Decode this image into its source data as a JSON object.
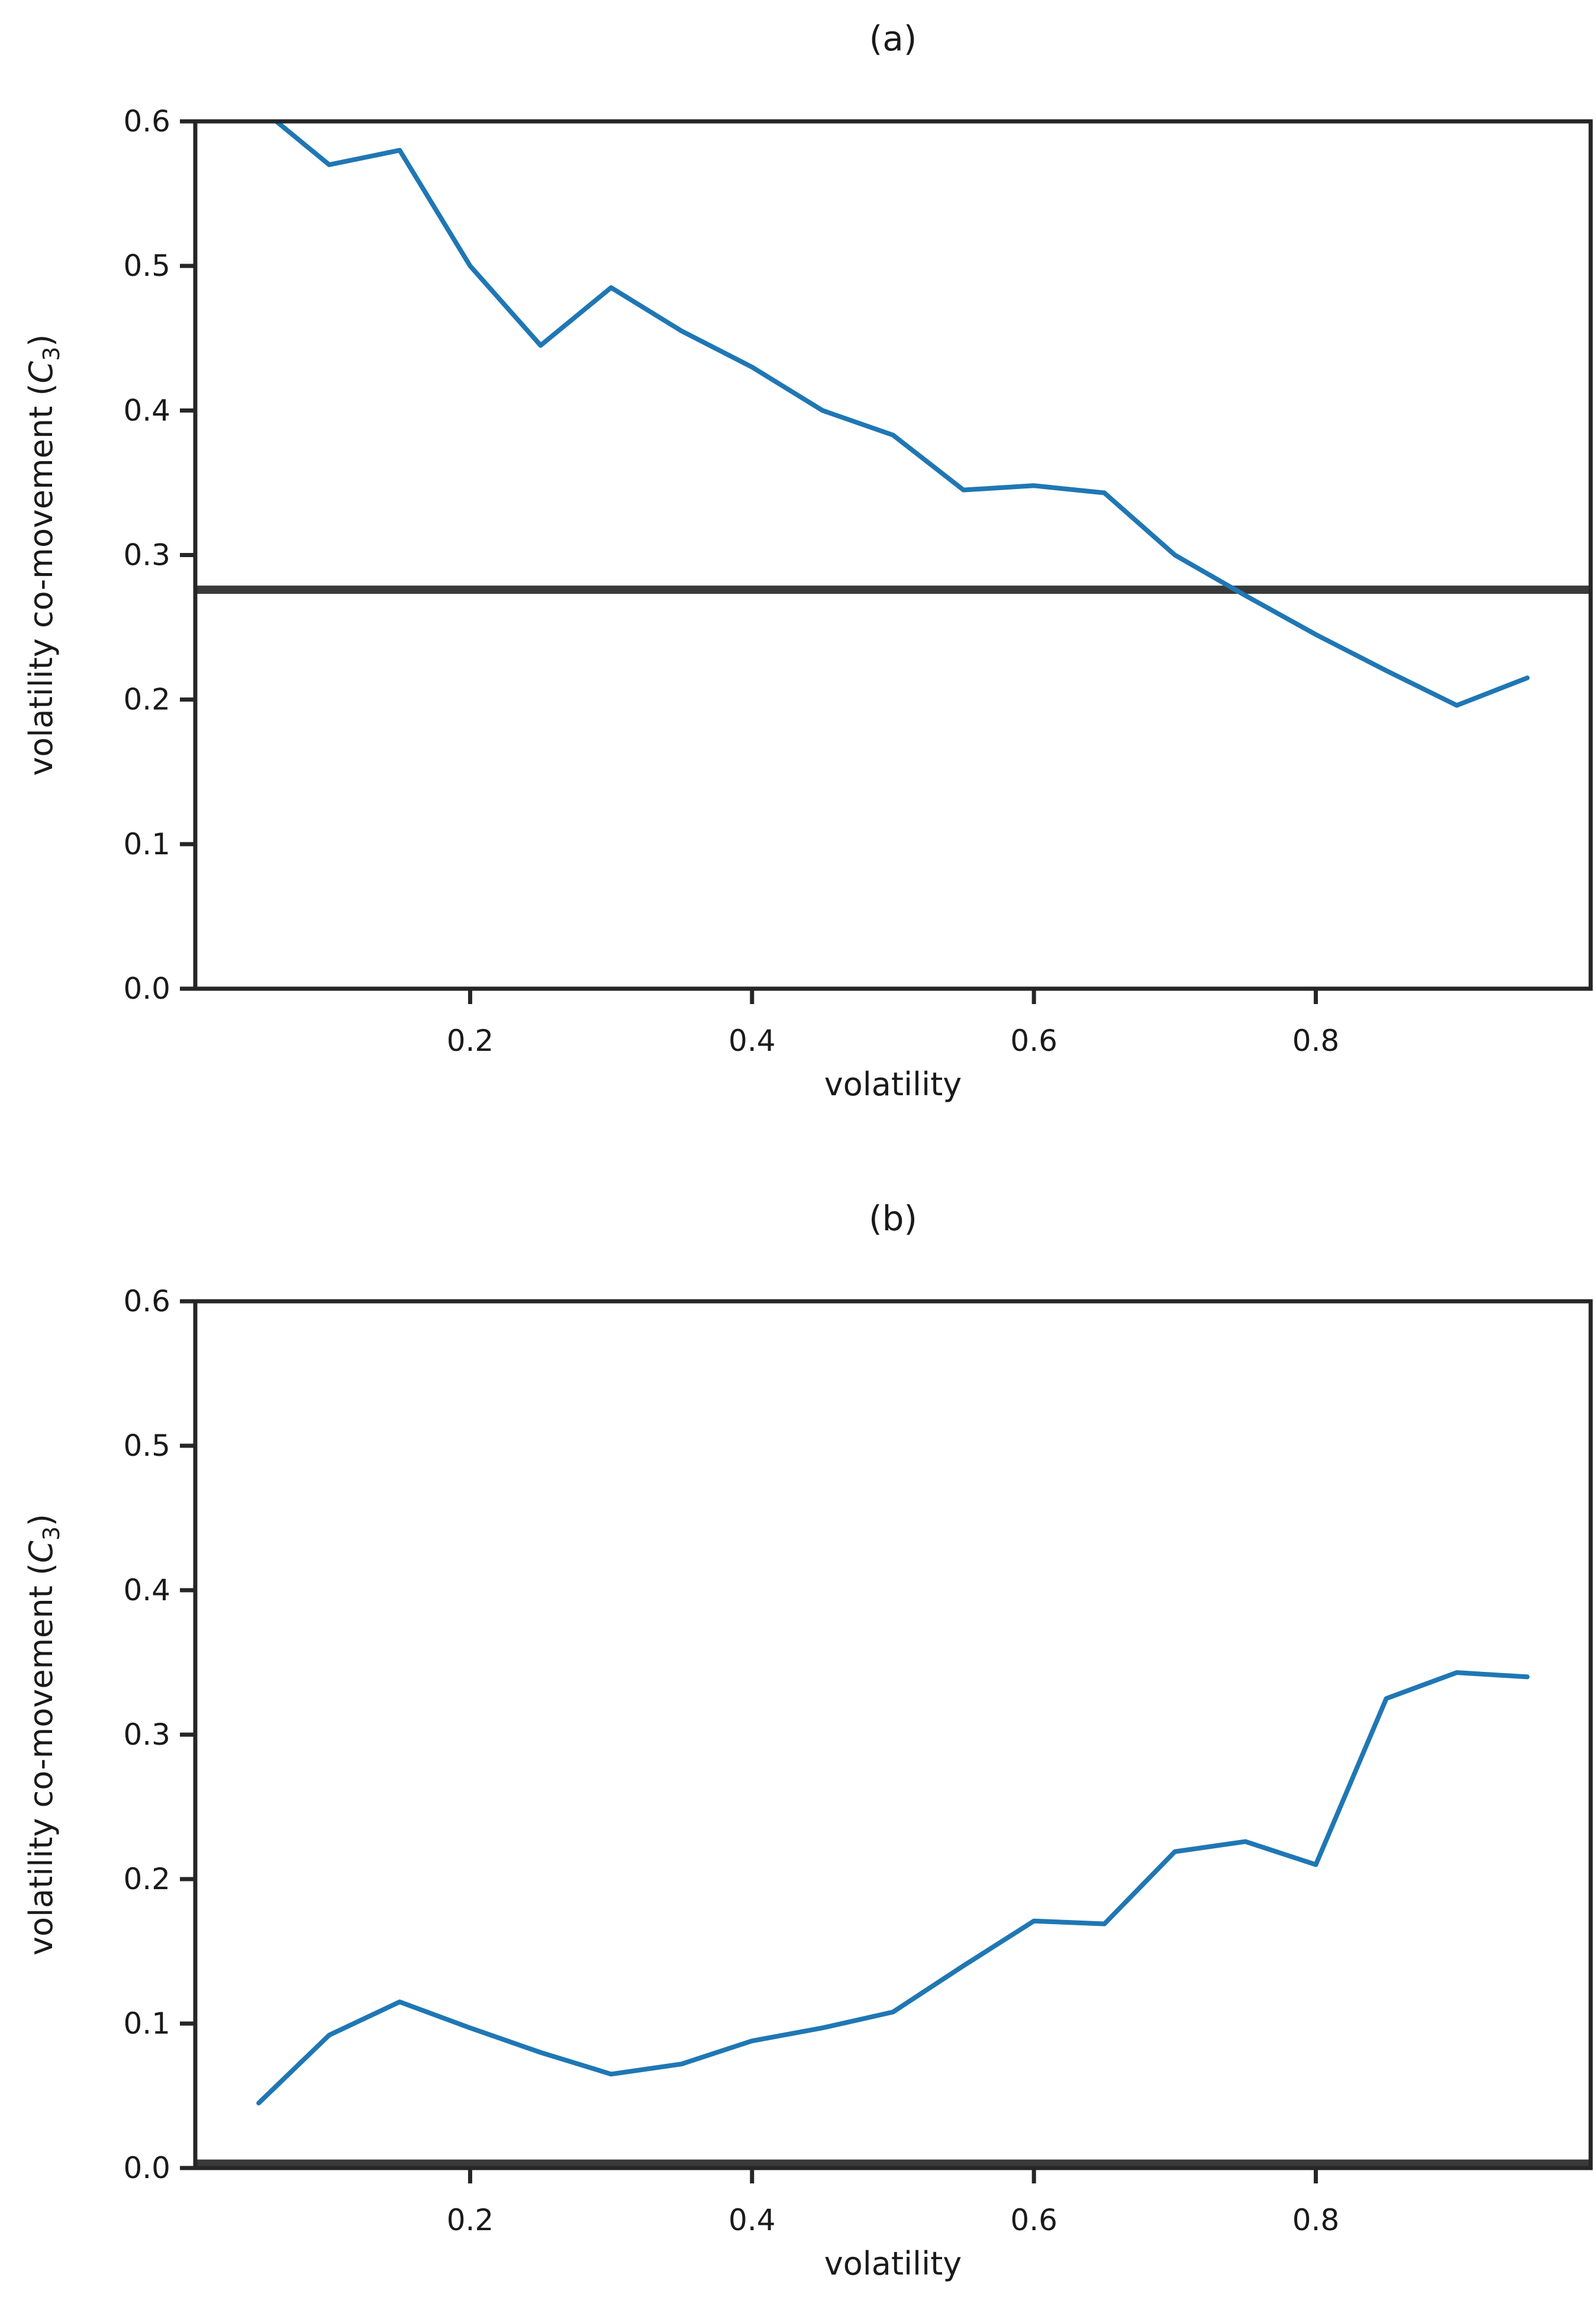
{
  "page": {
    "background": "#ffffff",
    "description": "Two stacked line plots of volatility co-movement versus volatility"
  },
  "colors": {
    "series_line": "#1f77b4",
    "reference_line": "#3a3a3a",
    "axis": "#262626",
    "text": "#1a1a1a"
  },
  "chart_data": [
    {
      "type": "line",
      "title": "(a)",
      "xlabel": "volatility",
      "ylabel": "volatility co-movement (C₃)",
      "ylabel_parts": {
        "pre": "volatility co-movement (",
        "var": "C",
        "sub": "3",
        "post": ")"
      },
      "xlim": [
        0.005,
        0.995
      ],
      "ylim": [
        0.0,
        0.6
      ],
      "xticks": [
        "0.2",
        "0.4",
        "0.6",
        "0.8"
      ],
      "xtick_values": [
        0.2,
        0.4,
        0.6,
        0.8
      ],
      "yticks": [
        "0.0",
        "0.1",
        "0.2",
        "0.3",
        "0.4",
        "0.5",
        "0.6"
      ],
      "ytick_values": [
        0.0,
        0.1,
        0.2,
        0.3,
        0.4,
        0.5,
        0.6
      ],
      "grid": false,
      "legend": "none",
      "x": [
        0.05,
        0.1,
        0.15,
        0.2,
        0.25,
        0.3,
        0.35,
        0.4,
        0.45,
        0.5,
        0.55,
        0.6,
        0.65,
        0.7,
        0.75,
        0.8,
        0.85,
        0.9,
        0.95
      ],
      "series": [
        {
          "name": "volatility co-movement",
          "values": [
            0.61,
            0.57,
            0.58,
            0.5,
            0.445,
            0.485,
            0.455,
            0.43,
            0.4,
            0.383,
            0.345,
            0.348,
            0.343,
            0.3,
            0.272,
            0.245,
            0.22,
            0.196,
            0.215
          ]
        }
      ],
      "reference_line_y": 0.276
    },
    {
      "type": "line",
      "title": "(b)",
      "xlabel": "volatility",
      "ylabel": "volatility co-movement (C₃)",
      "ylabel_parts": {
        "pre": "volatility co-movement (",
        "var": "C",
        "sub": "3",
        "post": ")"
      },
      "xlim": [
        0.005,
        0.995
      ],
      "ylim": [
        0.0,
        0.6
      ],
      "xticks": [
        "0.2",
        "0.4",
        "0.6",
        "0.8"
      ],
      "xtick_values": [
        0.2,
        0.4,
        0.6,
        0.8
      ],
      "yticks": [
        "0.0",
        "0.1",
        "0.2",
        "0.3",
        "0.4",
        "0.5",
        "0.6"
      ],
      "ytick_values": [
        0.0,
        0.1,
        0.2,
        0.3,
        0.4,
        0.5,
        0.6
      ],
      "grid": false,
      "legend": "none",
      "x": [
        0.05,
        0.1,
        0.15,
        0.2,
        0.25,
        0.3,
        0.35,
        0.4,
        0.45,
        0.5,
        0.55,
        0.6,
        0.65,
        0.7,
        0.75,
        0.8,
        0.85,
        0.9,
        0.95
      ],
      "series": [
        {
          "name": "volatility co-movement",
          "values": [
            0.045,
            0.092,
            0.115,
            0.097,
            0.08,
            0.065,
            0.072,
            0.088,
            0.097,
            0.108,
            0.14,
            0.171,
            0.169,
            0.219,
            0.226,
            0.21,
            0.325,
            0.343,
            0.34
          ]
        }
      ],
      "reference_line_y": 0.003
    }
  ]
}
